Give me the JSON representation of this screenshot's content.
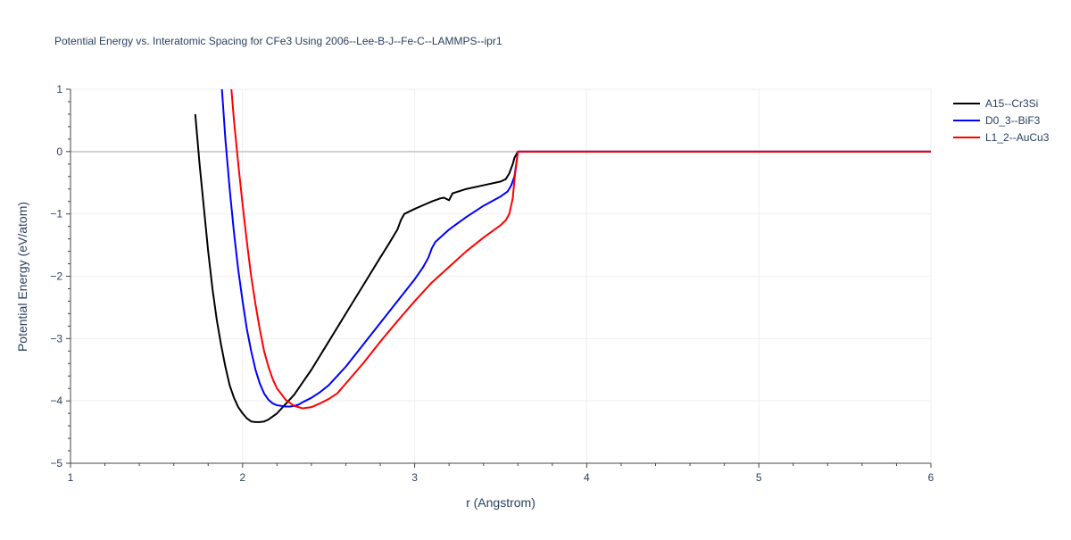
{
  "chart_data": {
    "type": "line",
    "title": "Potential Energy vs. Interatomic Spacing for CFe3 Using 2006--Lee-B-J--Fe-C--LAMMPS--ipr1",
    "xlabel": "r (Angstrom)",
    "ylabel": "Potential Energy (eV/atom)",
    "xlim": [
      1,
      6
    ],
    "ylim": [
      -5,
      1
    ],
    "xticks": [
      1,
      2,
      3,
      4,
      5,
      6
    ],
    "xtick_labels": [
      "1",
      "2",
      "3",
      "4",
      "5",
      "6"
    ],
    "yticks": [
      1,
      0,
      -1,
      -2,
      -3,
      -4,
      -5
    ],
    "ytick_labels": [
      "1",
      "0",
      "−1",
      "−2",
      "−3",
      "−4",
      "−5"
    ],
    "grid": true,
    "legend_position": "top-right",
    "series": [
      {
        "name": "A15--Cr3Si",
        "color": "#000000",
        "x": [
          1.725,
          1.75,
          1.775,
          1.8,
          1.825,
          1.85,
          1.875,
          1.9,
          1.925,
          1.95,
          1.975,
          2.0,
          2.025,
          2.05,
          2.075,
          2.1,
          2.125,
          2.15,
          2.2,
          2.25,
          2.3,
          2.35,
          2.4,
          2.5,
          2.6,
          2.7,
          2.8,
          2.85,
          2.9,
          2.92,
          2.94,
          3.0,
          3.05,
          3.1,
          3.15,
          3.17,
          3.2,
          3.22,
          3.3,
          3.4,
          3.5,
          3.53,
          3.55,
          3.57,
          3.58,
          3.6,
          3.7,
          4.0,
          4.5,
          5.0,
          5.5,
          6.0
        ],
        "y": [
          0.6,
          -0.2,
          -0.9,
          -1.6,
          -2.2,
          -2.7,
          -3.1,
          -3.45,
          -3.75,
          -3.95,
          -4.1,
          -4.2,
          -4.28,
          -4.33,
          -4.34,
          -4.34,
          -4.33,
          -4.3,
          -4.2,
          -4.05,
          -3.9,
          -3.7,
          -3.5,
          -3.05,
          -2.6,
          -2.15,
          -1.7,
          -1.48,
          -1.25,
          -1.1,
          -1.0,
          -0.92,
          -0.86,
          -0.8,
          -0.75,
          -0.74,
          -0.78,
          -0.67,
          -0.6,
          -0.54,
          -0.48,
          -0.44,
          -0.35,
          -0.2,
          -0.1,
          0,
          0,
          0,
          0,
          0,
          0,
          0
        ]
      },
      {
        "name": "D0_3--BiF3",
        "color": "#0000ff",
        "x": [
          1.88,
          1.9,
          1.925,
          1.95,
          1.975,
          2.0,
          2.025,
          2.05,
          2.075,
          2.1,
          2.125,
          2.15,
          2.175,
          2.2,
          2.225,
          2.25,
          2.275,
          2.3,
          2.325,
          2.35,
          2.4,
          2.45,
          2.5,
          2.6,
          2.7,
          2.8,
          2.9,
          3.0,
          3.05,
          3.08,
          3.1,
          3.12,
          3.2,
          3.3,
          3.4,
          3.5,
          3.54,
          3.56,
          3.58,
          3.6,
          3.7,
          4.0,
          4.5,
          5.0,
          5.5,
          6.0
        ],
        "y": [
          1.0,
          0.2,
          -0.6,
          -1.3,
          -1.9,
          -2.4,
          -2.85,
          -3.2,
          -3.5,
          -3.72,
          -3.88,
          -3.98,
          -4.04,
          -4.07,
          -4.08,
          -4.09,
          -4.09,
          -4.08,
          -4.06,
          -4.02,
          -3.95,
          -3.86,
          -3.75,
          -3.45,
          -3.1,
          -2.75,
          -2.4,
          -2.05,
          -1.85,
          -1.7,
          -1.55,
          -1.45,
          -1.25,
          -1.05,
          -0.87,
          -0.72,
          -0.64,
          -0.55,
          -0.4,
          0,
          0,
          0,
          0,
          0,
          0,
          0
        ]
      },
      {
        "name": "L1_2--AuCu3",
        "color": "#ff0000",
        "x": [
          1.935,
          1.95,
          1.975,
          2.0,
          2.025,
          2.05,
          2.075,
          2.1,
          2.125,
          2.15,
          2.175,
          2.2,
          2.25,
          2.3,
          2.35,
          2.4,
          2.45,
          2.5,
          2.55,
          2.6,
          2.7,
          2.8,
          2.9,
          3.0,
          3.1,
          3.2,
          3.3,
          3.4,
          3.5,
          3.53,
          3.55,
          3.57,
          3.58,
          3.6,
          3.7,
          4.0,
          4.5,
          5.0,
          5.5,
          6.0
        ],
        "y": [
          1.0,
          0.5,
          -0.2,
          -0.85,
          -1.45,
          -2.0,
          -2.45,
          -2.85,
          -3.2,
          -3.45,
          -3.65,
          -3.8,
          -3.98,
          -4.08,
          -4.12,
          -4.1,
          -4.04,
          -3.97,
          -3.88,
          -3.72,
          -3.4,
          -3.05,
          -2.72,
          -2.4,
          -2.1,
          -1.85,
          -1.6,
          -1.38,
          -1.18,
          -1.1,
          -1.0,
          -0.75,
          -0.45,
          0,
          0,
          0,
          0,
          0,
          0,
          0
        ]
      }
    ]
  }
}
